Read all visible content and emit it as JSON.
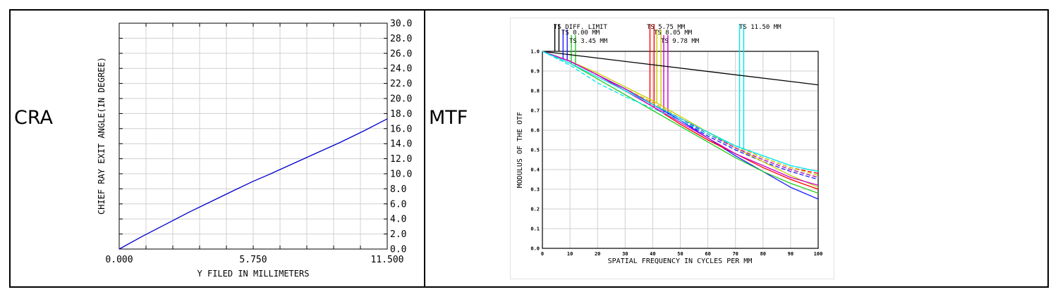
{
  "panels": {
    "left_label": "CRA",
    "right_label": "MTF"
  },
  "chart_data": [
    {
      "type": "line",
      "xlabel": "Y FILED IN MILLIMETERS",
      "ylabel": "CHIEF RAY EXIT ANGLE(IN DEGREE)",
      "xlim": [
        0,
        11.5
      ],
      "ylim": [
        0,
        30
      ],
      "x_tick_labels": [
        "0.000",
        "5.750",
        "11.500"
      ],
      "y_tick_labels": [
        "0.0",
        "2.0",
        "4.0",
        "6.0",
        "8.0",
        "10.0",
        "12.0",
        "14.0",
        "16.0",
        "18.0",
        "20.0",
        "22.0",
        "24.0",
        "26.0",
        "28.0",
        "30.0"
      ],
      "grid": true,
      "series": [
        {
          "color": "#0000cc",
          "x": [
            0,
            1.0,
            2.0,
            3.0,
            4.0,
            5.0,
            5.75,
            6.5,
            7.5,
            8.5,
            9.5,
            10.5,
            11.5
          ],
          "y": [
            0,
            1.7,
            3.3,
            4.9,
            6.4,
            7.9,
            9.0,
            10.0,
            11.4,
            12.8,
            14.2,
            15.7,
            17.3
          ]
        }
      ]
    },
    {
      "type": "line",
      "xlabel": "SPATIAL FREQUENCY IN CYCLES PER MM",
      "ylabel": "MODULUS OF THE OTF",
      "xlim": [
        0,
        100
      ],
      "ylim": [
        0,
        1
      ],
      "x_tick_labels": [
        "0",
        "10",
        "20",
        "30",
        "40",
        "50",
        "60",
        "70",
        "80",
        "90",
        "100"
      ],
      "y_tick_labels": [
        "0.0",
        "0.1",
        "0.2",
        "0.3",
        "0.4",
        "0.5",
        "0.6",
        "0.7",
        "0.8",
        "0.9",
        "1.0"
      ],
      "grid": true,
      "legend": [
        {
          "label": "TS DIFF. LIMIT",
          "color": "#000000",
          "markers_x": [
            4.5,
            6
          ]
        },
        {
          "label": "TS 0.00 MM",
          "color": "#1a1aff",
          "markers_x": [
            7.5,
            9
          ]
        },
        {
          "label": "TS 3.45 MM",
          "color": "#22cc22",
          "markers_x": [
            10.5,
            12
          ]
        },
        {
          "label": "TS 5.75 MM",
          "color": "#ff0000",
          "markers_x": [
            39,
            40.5
          ]
        },
        {
          "label": "TS 8.05 MM",
          "color": "#cccc00",
          "markers_x": [
            41.5,
            43
          ]
        },
        {
          "label": "TS 9.78 MM",
          "color": "#cc00cc",
          "markers_x": [
            44,
            45.5
          ]
        },
        {
          "label": "TS 11.50 MM",
          "color": "#00e5ee",
          "markers_x": [
            71.5,
            73
          ]
        }
      ],
      "series": [
        {
          "color": "#000000",
          "dash": false,
          "x": [
            0,
            100
          ],
          "y": [
            1.0,
            0.83
          ]
        },
        {
          "color": "#1a1aff",
          "dash": false,
          "x": [
            0,
            10,
            20,
            30,
            40,
            50,
            60,
            70,
            80,
            90,
            100
          ],
          "y": [
            1.0,
            0.95,
            0.88,
            0.81,
            0.73,
            0.65,
            0.56,
            0.47,
            0.39,
            0.31,
            0.25
          ]
        },
        {
          "color": "#1a1aff",
          "dash": true,
          "x": [
            0,
            10,
            20,
            30,
            40,
            50,
            60,
            70,
            80,
            90,
            100
          ],
          "y": [
            1.0,
            0.95,
            0.88,
            0.81,
            0.73,
            0.65,
            0.57,
            0.5,
            0.44,
            0.39,
            0.35
          ]
        },
        {
          "color": "#22cc22",
          "dash": false,
          "x": [
            0,
            10,
            20,
            30,
            40,
            50,
            60,
            70,
            80,
            90,
            100
          ],
          "y": [
            1.0,
            0.94,
            0.86,
            0.78,
            0.7,
            0.62,
            0.54,
            0.46,
            0.39,
            0.33,
            0.28
          ]
        },
        {
          "color": "#22cc22",
          "dash": true,
          "x": [
            0,
            10,
            20,
            30,
            40,
            50,
            60,
            70,
            80,
            90,
            100
          ],
          "y": [
            1.0,
            0.95,
            0.88,
            0.81,
            0.74,
            0.66,
            0.58,
            0.51,
            0.45,
            0.4,
            0.36
          ]
        },
        {
          "color": "#ff0000",
          "dash": false,
          "x": [
            0,
            10,
            20,
            30,
            40,
            50,
            60,
            70,
            80,
            90,
            100
          ],
          "y": [
            1.0,
            0.95,
            0.88,
            0.8,
            0.72,
            0.63,
            0.55,
            0.48,
            0.41,
            0.35,
            0.3
          ]
        },
        {
          "color": "#ff0000",
          "dash": true,
          "x": [
            0,
            10,
            20,
            30,
            40,
            50,
            60,
            70,
            80,
            90,
            100
          ],
          "y": [
            1.0,
            0.95,
            0.88,
            0.81,
            0.74,
            0.66,
            0.59,
            0.52,
            0.46,
            0.41,
            0.38
          ]
        },
        {
          "color": "#cccc00",
          "dash": false,
          "x": [
            0,
            10,
            20,
            30,
            40,
            50,
            60,
            70,
            80,
            90,
            100
          ],
          "y": [
            1.0,
            0.95,
            0.89,
            0.82,
            0.75,
            0.67,
            0.59,
            0.51,
            0.44,
            0.37,
            0.31
          ]
        },
        {
          "color": "#cccc00",
          "dash": true,
          "x": [
            0,
            10,
            20,
            30,
            40,
            50,
            60,
            70,
            80,
            90,
            100
          ],
          "y": [
            1.0,
            0.95,
            0.88,
            0.81,
            0.74,
            0.66,
            0.59,
            0.52,
            0.46,
            0.41,
            0.37
          ]
        },
        {
          "color": "#cc00cc",
          "dash": false,
          "x": [
            0,
            10,
            20,
            30,
            40,
            50,
            60,
            70,
            80,
            90,
            100
          ],
          "y": [
            1.0,
            0.95,
            0.88,
            0.8,
            0.72,
            0.64,
            0.56,
            0.48,
            0.42,
            0.36,
            0.32
          ]
        },
        {
          "color": "#cc00cc",
          "dash": true,
          "x": [
            0,
            10,
            20,
            30,
            40,
            50,
            60,
            70,
            80,
            90,
            100
          ],
          "y": [
            1.0,
            0.95,
            0.88,
            0.81,
            0.73,
            0.66,
            0.58,
            0.51,
            0.45,
            0.4,
            0.36
          ]
        },
        {
          "color": "#00e5ee",
          "dash": false,
          "x": [
            0,
            10,
            20,
            30,
            40,
            50,
            60,
            70,
            80,
            90,
            100
          ],
          "y": [
            1.0,
            0.94,
            0.87,
            0.8,
            0.73,
            0.66,
            0.59,
            0.52,
            0.47,
            0.42,
            0.39
          ]
        },
        {
          "color": "#00e5ee",
          "dash": true,
          "x": [
            0,
            10,
            20,
            30,
            40,
            50,
            60,
            70,
            80,
            90,
            100
          ],
          "y": [
            1.0,
            0.93,
            0.84,
            0.77,
            0.71,
            0.65,
            0.58,
            0.52,
            0.47,
            0.42,
            0.39
          ]
        }
      ]
    }
  ]
}
